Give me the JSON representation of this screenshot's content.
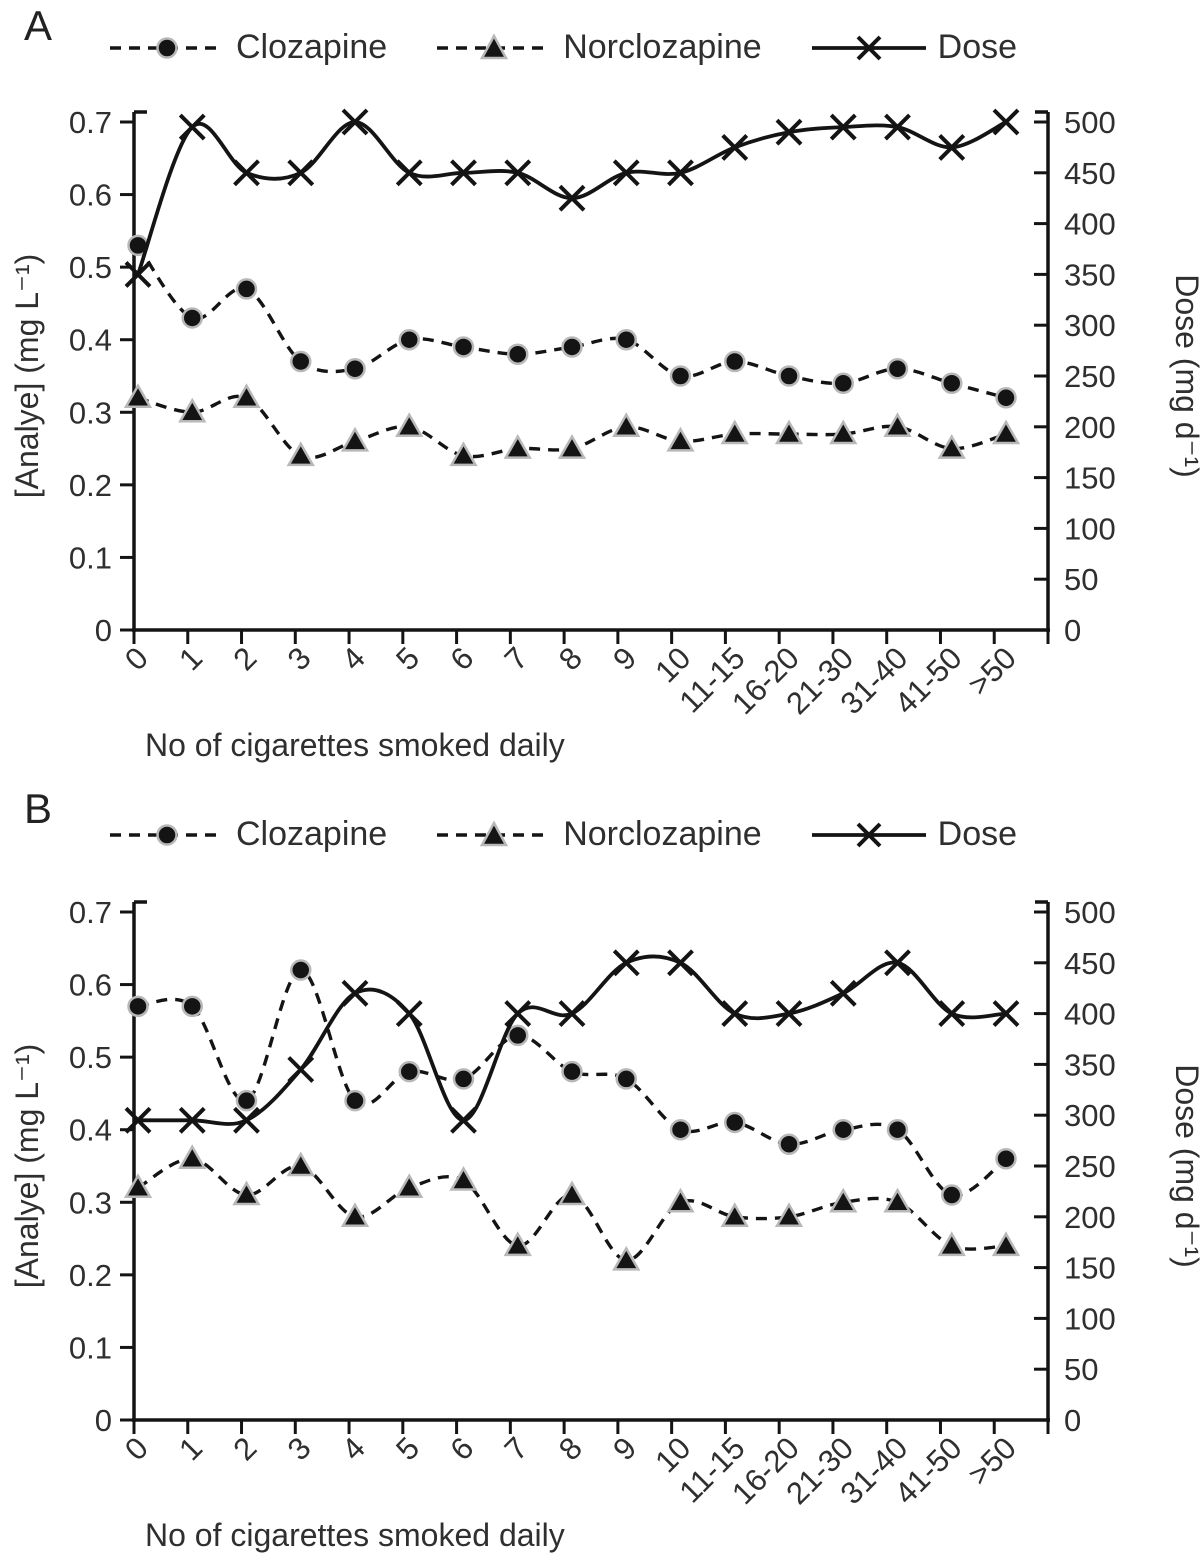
{
  "page": {
    "background": "#ffffff"
  },
  "style": {
    "ink_color": "#141414",
    "text_color": "#2f2f2f",
    "marker_halo_color": "#b8b8b8"
  },
  "chart_data": [
    {
      "type": "line",
      "panel_label": "A",
      "xlabel": "No of cigarettes smoked daily",
      "ylabel_left": "[Analye] (mg L⁻¹)",
      "ylabel_right": "Dose (mg d⁻¹)",
      "ylim_left": [
        0,
        0.7
      ],
      "ytick_step_left": 0.1,
      "ylim_right": [
        0,
        500
      ],
      "ytick_step_right": 50,
      "grid": false,
      "legend_position": "top",
      "x_tick_rotation": -45,
      "categories": [
        "0",
        "1",
        "2",
        "3",
        "4",
        "5",
        "6",
        "7",
        "8",
        "9",
        "10",
        "11-15",
        "16-20",
        "21-30",
        "31-40",
        "41-50",
        ">50"
      ],
      "series": [
        {
          "name": "Clozapine",
          "axis": "left",
          "marker": "circle",
          "line_style": "dashed",
          "smooth": true,
          "values": [
            0.53,
            0.43,
            0.47,
            0.37,
            0.36,
            0.4,
            0.39,
            0.38,
            0.39,
            0.4,
            0.35,
            0.37,
            0.35,
            0.34,
            0.36,
            0.34,
            0.32
          ]
        },
        {
          "name": "Norclozapine",
          "axis": "left",
          "marker": "triangle",
          "line_style": "dashed",
          "smooth": true,
          "values": [
            0.32,
            0.3,
            0.32,
            0.24,
            0.26,
            0.28,
            0.24,
            0.25,
            0.25,
            0.28,
            0.26,
            0.27,
            0.27,
            0.27,
            0.28,
            0.25,
            0.27
          ]
        },
        {
          "name": "Dose",
          "axis": "right",
          "marker": "x",
          "line_style": "solid",
          "smooth": true,
          "values": [
            350,
            495,
            450,
            450,
            500,
            450,
            450,
            450,
            425,
            450,
            450,
            475,
            490,
            495,
            495,
            475,
            500
          ]
        }
      ]
    },
    {
      "type": "line",
      "panel_label": "B",
      "xlabel": "No of cigarettes smoked daily",
      "ylabel_left": "[Analye] (mg L⁻¹)",
      "ylabel_right": "Dose (mg d⁻¹)",
      "ylim_left": [
        0,
        0.7
      ],
      "ytick_step_left": 0.1,
      "ylim_right": [
        0,
        500
      ],
      "ytick_step_right": 50,
      "grid": false,
      "legend_position": "top",
      "x_tick_rotation": -45,
      "categories": [
        "0",
        "1",
        "2",
        "3",
        "4",
        "5",
        "6",
        "7",
        "8",
        "9",
        "10",
        "11-15",
        "16-20",
        "21-30",
        "31-40",
        "41-50",
        ">50"
      ],
      "series": [
        {
          "name": "Clozapine",
          "axis": "left",
          "marker": "circle",
          "line_style": "dashed",
          "smooth": true,
          "values": [
            0.57,
            0.57,
            0.44,
            0.62,
            0.44,
            0.48,
            0.47,
            0.53,
            0.48,
            0.47,
            0.4,
            0.41,
            0.38,
            0.4,
            0.4,
            0.31,
            0.36
          ]
        },
        {
          "name": "Norclozapine",
          "axis": "left",
          "marker": "triangle",
          "line_style": "dashed",
          "smooth": true,
          "values": [
            0.32,
            0.36,
            0.31,
            0.35,
            0.28,
            0.32,
            0.33,
            0.24,
            0.31,
            0.22,
            0.3,
            0.28,
            0.28,
            0.3,
            0.3,
            0.24,
            0.24
          ]
        },
        {
          "name": "Dose",
          "axis": "right",
          "marker": "x",
          "line_style": "solid",
          "smooth": true,
          "values": [
            295,
            295,
            295,
            345,
            420,
            400,
            295,
            400,
            400,
            450,
            450,
            400,
            400,
            420,
            450,
            400,
            400
          ]
        }
      ]
    }
  ]
}
